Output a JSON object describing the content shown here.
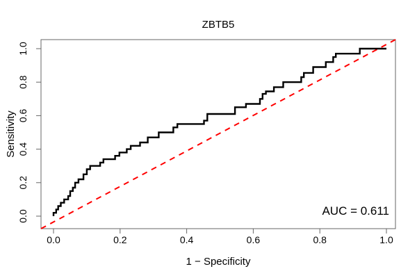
{
  "title": "ZBTB5",
  "xlabel": "1 − Specificity",
  "ylabel": "Sensitivity",
  "auc_label": "AUC = 0.611",
  "colors": {
    "curve": "#000000",
    "diagonal": "#FF0000",
    "frame": "#666666",
    "text": "#000000",
    "background": "#FFFFFF"
  },
  "chart_data": {
    "type": "line",
    "subtype": "roc-step-curve",
    "title": "ZBTB5",
    "xlabel": "1 − Specificity",
    "ylabel": "Sensitivity",
    "annotation": "AUC = 0.611",
    "auc": 0.611,
    "xlim": [
      -0.04,
      1.04
    ],
    "ylim": [
      -0.04,
      1.04
    ],
    "grid": false,
    "legend": "none",
    "x_ticks": [
      0.0,
      0.2,
      0.4,
      0.6,
      0.8,
      1.0
    ],
    "y_ticks": [
      0.0,
      0.2,
      0.4,
      0.6,
      0.8,
      1.0
    ],
    "x_tick_labels": [
      "0.0",
      "0.2",
      "0.4",
      "0.6",
      "0.8",
      "1.0"
    ],
    "y_tick_labels": [
      "0.0",
      "0.2",
      "0.4",
      "0.6",
      "0.8",
      "1.0"
    ],
    "series": [
      {
        "name": "ROC curve",
        "style": "solid-step",
        "color": "#000000",
        "line_width": 2.4,
        "points": [
          [
            0.0,
            0.0
          ],
          [
            0.0,
            0.02
          ],
          [
            0.008,
            0.02
          ],
          [
            0.008,
            0.04
          ],
          [
            0.014,
            0.04
          ],
          [
            0.014,
            0.06
          ],
          [
            0.022,
            0.06
          ],
          [
            0.022,
            0.08
          ],
          [
            0.032,
            0.08
          ],
          [
            0.032,
            0.1
          ],
          [
            0.044,
            0.1
          ],
          [
            0.044,
            0.12
          ],
          [
            0.05,
            0.12
          ],
          [
            0.05,
            0.15
          ],
          [
            0.058,
            0.15
          ],
          [
            0.058,
            0.17
          ],
          [
            0.065,
            0.17
          ],
          [
            0.065,
            0.2
          ],
          [
            0.075,
            0.2
          ],
          [
            0.075,
            0.22
          ],
          [
            0.09,
            0.22
          ],
          [
            0.09,
            0.25
          ],
          [
            0.1,
            0.25
          ],
          [
            0.1,
            0.28
          ],
          [
            0.11,
            0.28
          ],
          [
            0.11,
            0.3
          ],
          [
            0.14,
            0.3
          ],
          [
            0.14,
            0.32
          ],
          [
            0.15,
            0.32
          ],
          [
            0.15,
            0.34
          ],
          [
            0.185,
            0.34
          ],
          [
            0.185,
            0.36
          ],
          [
            0.198,
            0.36
          ],
          [
            0.198,
            0.38
          ],
          [
            0.22,
            0.38
          ],
          [
            0.22,
            0.4
          ],
          [
            0.232,
            0.4
          ],
          [
            0.232,
            0.42
          ],
          [
            0.26,
            0.42
          ],
          [
            0.26,
            0.44
          ],
          [
            0.283,
            0.44
          ],
          [
            0.283,
            0.47
          ],
          [
            0.316,
            0.47
          ],
          [
            0.316,
            0.5
          ],
          [
            0.36,
            0.5
          ],
          [
            0.36,
            0.53
          ],
          [
            0.372,
            0.53
          ],
          [
            0.372,
            0.55
          ],
          [
            0.452,
            0.55
          ],
          [
            0.452,
            0.57
          ],
          [
            0.462,
            0.57
          ],
          [
            0.462,
            0.61
          ],
          [
            0.545,
            0.61
          ],
          [
            0.545,
            0.65
          ],
          [
            0.578,
            0.65
          ],
          [
            0.578,
            0.67
          ],
          [
            0.62,
            0.67
          ],
          [
            0.62,
            0.7
          ],
          [
            0.628,
            0.7
          ],
          [
            0.628,
            0.73
          ],
          [
            0.638,
            0.73
          ],
          [
            0.638,
            0.745
          ],
          [
            0.662,
            0.745
          ],
          [
            0.662,
            0.77
          ],
          [
            0.69,
            0.77
          ],
          [
            0.69,
            0.8
          ],
          [
            0.744,
            0.8
          ],
          [
            0.744,
            0.83
          ],
          [
            0.752,
            0.83
          ],
          [
            0.752,
            0.855
          ],
          [
            0.78,
            0.855
          ],
          [
            0.78,
            0.89
          ],
          [
            0.818,
            0.89
          ],
          [
            0.818,
            0.92
          ],
          [
            0.84,
            0.92
          ],
          [
            0.84,
            0.95
          ],
          [
            0.848,
            0.95
          ],
          [
            0.848,
            0.97
          ],
          [
            0.92,
            0.97
          ],
          [
            0.92,
            1.0
          ],
          [
            1.0,
            1.0
          ]
        ]
      },
      {
        "name": "Chance diagonal",
        "style": "dashed",
        "color": "#FF0000",
        "line_width": 2,
        "equation": "y = x",
        "points": [
          [
            0,
            0
          ],
          [
            1,
            1
          ]
        ],
        "extend_to_box": true
      }
    ]
  }
}
